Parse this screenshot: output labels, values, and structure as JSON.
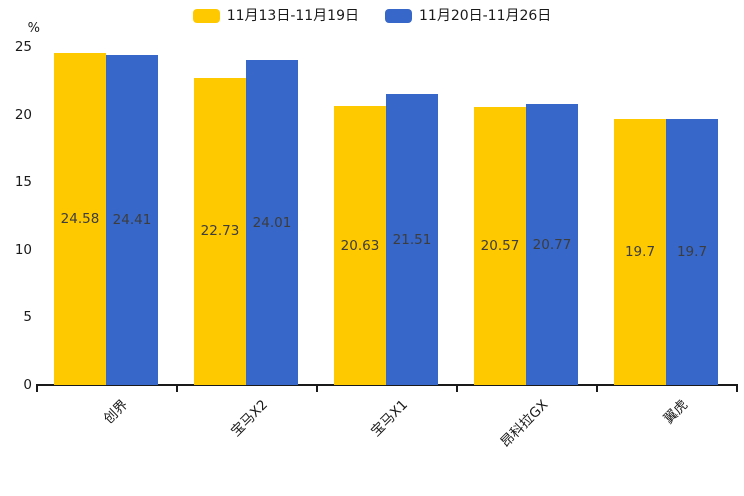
{
  "chart_data": {
    "type": "bar",
    "title": "",
    "ylabel": "%",
    "categories": [
      "创界",
      "宝马X2",
      "宝马X1",
      "昂科拉GX",
      "翼虎"
    ],
    "series": [
      {
        "name": "11月13日-11月19日",
        "color": "#FFC900",
        "values": [
          24.58,
          22.73,
          20.63,
          20.57,
          19.7
        ]
      },
      {
        "name": "11月20日-11月26日",
        "color": "#3667C9",
        "values": [
          24.41,
          24.01,
          21.51,
          20.77,
          19.7
        ]
      }
    ],
    "ylim": [
      0,
      25
    ],
    "yticks": [
      0,
      5,
      10,
      15,
      20,
      25
    ],
    "grid": false,
    "legend_position": "top-center",
    "value_label_color": "#3d3d3d",
    "axis_color": "#1a1a1a",
    "background_color": "#ffffff"
  }
}
